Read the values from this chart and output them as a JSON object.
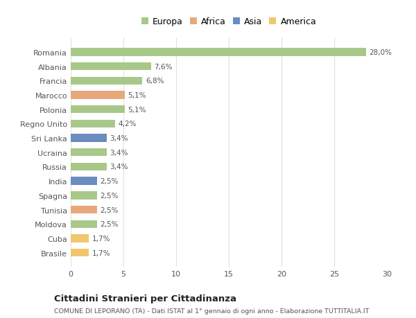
{
  "categories": [
    "Brasile",
    "Cuba",
    "Moldova",
    "Tunisia",
    "Spagna",
    "India",
    "Russia",
    "Ucraina",
    "Sri Lanka",
    "Regno Unito",
    "Polonia",
    "Marocco",
    "Francia",
    "Albania",
    "Romania"
  ],
  "values": [
    1.7,
    1.7,
    2.5,
    2.5,
    2.5,
    2.5,
    3.4,
    3.4,
    3.4,
    4.2,
    5.1,
    5.1,
    6.8,
    7.6,
    28.0
  ],
  "labels": [
    "1,7%",
    "1,7%",
    "2,5%",
    "2,5%",
    "2,5%",
    "2,5%",
    "3,4%",
    "3,4%",
    "3,4%",
    "4,2%",
    "5,1%",
    "5,1%",
    "6,8%",
    "7,6%",
    "28,0%"
  ],
  "colors": [
    "#f0c76e",
    "#f0c76e",
    "#a8c88a",
    "#e8a87c",
    "#a8c88a",
    "#6b8cbf",
    "#a8c88a",
    "#a8c88a",
    "#6b8cbf",
    "#a8c88a",
    "#a8c88a",
    "#e8a87c",
    "#a8c88a",
    "#a8c88a",
    "#a8c88a"
  ],
  "legend_labels": [
    "Europa",
    "Africa",
    "Asia",
    "America"
  ],
  "legend_colors": [
    "#a8c88a",
    "#e8a87c",
    "#6b8cbf",
    "#f0c76e"
  ],
  "xlim": [
    0,
    30
  ],
  "xticks": [
    0,
    5,
    10,
    15,
    20,
    25,
    30
  ],
  "title": "Cittadini Stranieri per Cittadinanza",
  "subtitle": "COMUNE DI LEPORANO (TA) - Dati ISTAT al 1° gennaio di ogni anno - Elaborazione TUTTITALIA.IT",
  "bg_color": "#ffffff",
  "grid_color": "#e0e0e0",
  "bar_height": 0.55
}
